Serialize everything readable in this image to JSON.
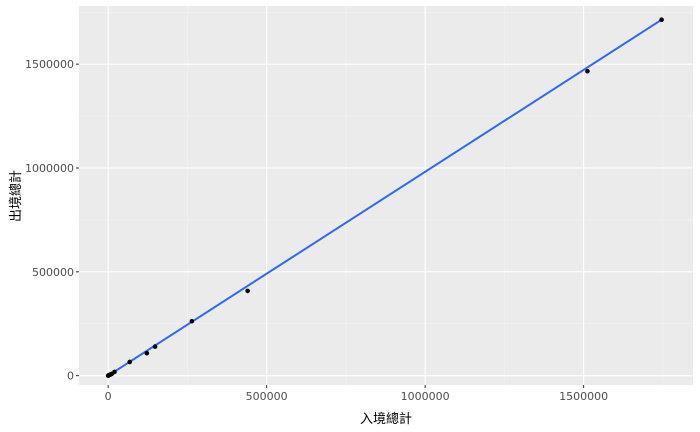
{
  "chart_data": {
    "type": "scatter",
    "xlabel": "入境總計",
    "ylabel": "出境總計",
    "xlim": [
      -92000,
      1845000
    ],
    "ylim": [
      -45000,
      1780000
    ],
    "x_ticks": [
      0,
      500000,
      1000000,
      1500000
    ],
    "y_ticks": [
      0,
      500000,
      1000000,
      1500000
    ],
    "x_tick_labels": [
      "0",
      "500000",
      "1000000",
      "1500000"
    ],
    "y_tick_labels": [
      "0",
      "500000",
      "1000000",
      "1500000"
    ],
    "grid": true,
    "legend": "none",
    "points": [
      {
        "x": 0,
        "y": 0
      },
      {
        "x": 1500,
        "y": 1200
      },
      {
        "x": 3000,
        "y": 2500
      },
      {
        "x": 5000,
        "y": 4000
      },
      {
        "x": 8000,
        "y": 6000
      },
      {
        "x": 12000,
        "y": 9000
      },
      {
        "x": 20000,
        "y": 18000
      },
      {
        "x": 68000,
        "y": 66000
      },
      {
        "x": 122000,
        "y": 108000
      },
      {
        "x": 148000,
        "y": 140000
      },
      {
        "x": 264000,
        "y": 262000
      },
      {
        "x": 440000,
        "y": 408000
      },
      {
        "x": 1512000,
        "y": 1466000
      },
      {
        "x": 1746000,
        "y": 1714000
      }
    ],
    "fit_line": {
      "x": [
        0,
        1746000
      ],
      "y": [
        0,
        1714000
      ]
    },
    "colors": {
      "panel": "#ebebeb",
      "grid_major": "#ffffff",
      "grid_minor": "#f4f4f4",
      "point": "#000000",
      "fit_line": "#3366ff",
      "tick_text": "#4d4d4d",
      "axis_title": "#000000"
    }
  }
}
